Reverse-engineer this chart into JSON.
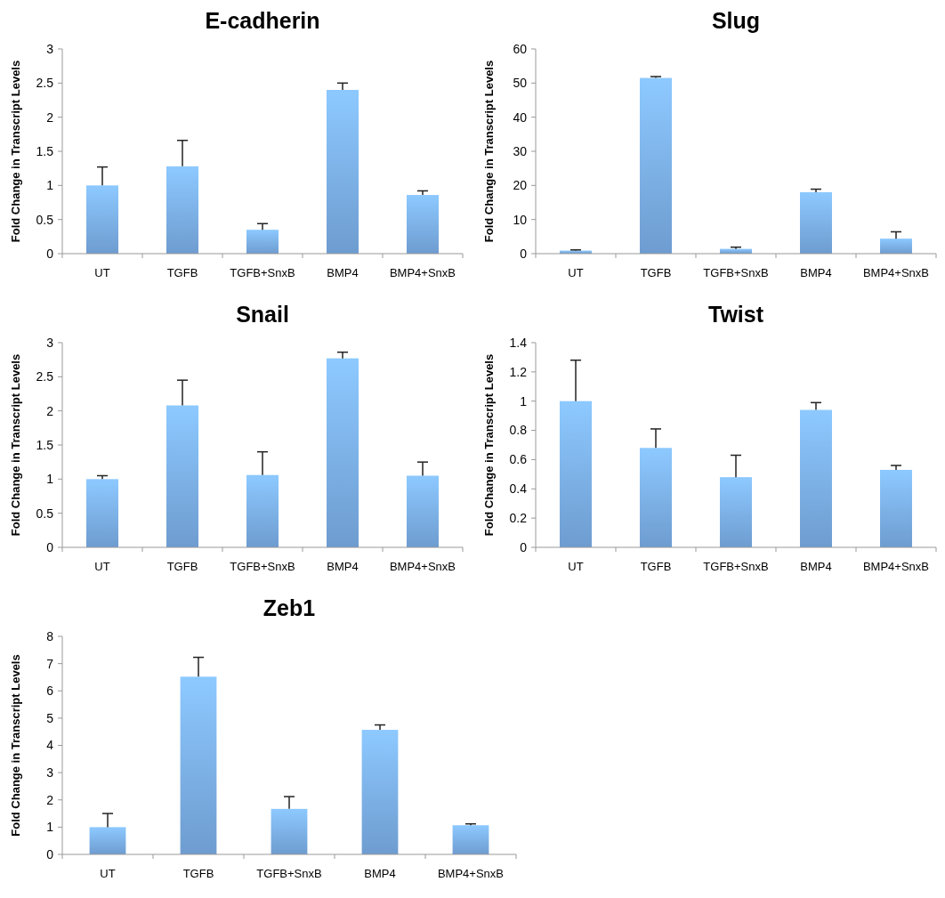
{
  "chart_data": [
    {
      "type": "bar",
      "title": "E-cadherin",
      "ylabel": "Fold Change in Transcript Levels",
      "categories": [
        "UT",
        "TGFB",
        "TGFB+SnxB",
        "BMP4",
        "BMP4+SnxB"
      ],
      "values": [
        1.0,
        1.28,
        0.35,
        2.4,
        0.86
      ],
      "errors": [
        [
          1.0,
          1.27
        ],
        [
          1.28,
          1.66
        ],
        [
          0.35,
          0.44
        ],
        [
          2.4,
          2.5
        ],
        [
          0.86,
          0.92
        ]
      ],
      "color": "#7aaee8",
      "ylim": [
        0,
        3
      ],
      "yticks": [
        0,
        0.5,
        1,
        1.5,
        2,
        2.5,
        3
      ],
      "grid": false
    },
    {
      "type": "bar",
      "title": "Slug",
      "ylabel": "Fold Change in Transcript Levels",
      "categories": [
        "UT",
        "TGFB",
        "TGFB+SnxB",
        "BMP4",
        "BMP4+SnxB"
      ],
      "values": [
        0.9,
        51.5,
        1.4,
        18,
        4.4
      ],
      "errors": [
        [
          0.9,
          1.1
        ],
        [
          51.5,
          51.9
        ],
        [
          1.4,
          1.9
        ],
        [
          18,
          18.9
        ],
        [
          4.4,
          6.4
        ]
      ],
      "color": "#7aaee8",
      "ylim": [
        0,
        60
      ],
      "yticks": [
        0,
        10,
        20,
        30,
        40,
        50,
        60
      ],
      "grid": false
    },
    {
      "type": "bar",
      "title": "Snail",
      "ylabel": "Fold Change in Transcript Levels",
      "categories": [
        "UT",
        "TGFB",
        "TGFB+SnxB",
        "BMP4",
        "BMP4+SnxB"
      ],
      "values": [
        1.0,
        2.08,
        1.06,
        2.77,
        1.05
      ],
      "errors": [
        [
          1.0,
          1.05
        ],
        [
          2.08,
          2.45
        ],
        [
          1.06,
          1.4
        ],
        [
          2.77,
          2.86
        ],
        [
          1.05,
          1.25
        ]
      ],
      "color": "#7aaee8",
      "ylim": [
        0,
        3
      ],
      "yticks": [
        0,
        0.5,
        1,
        1.5,
        2,
        2.5,
        3
      ],
      "grid": false
    },
    {
      "type": "bar",
      "title": "Twist",
      "ylabel": "Fold Change in Transcript Levels",
      "categories": [
        "UT",
        "TGFB",
        "TGFB+SnxB",
        "BMP4",
        "BMP4+SnxB"
      ],
      "values": [
        1.0,
        0.68,
        0.48,
        0.94,
        0.53
      ],
      "errors": [
        [
          1.0,
          1.28
        ],
        [
          0.68,
          0.81
        ],
        [
          0.48,
          0.63
        ],
        [
          0.94,
          0.99
        ],
        [
          0.53,
          0.56
        ]
      ],
      "color": "#7aaee8",
      "ylim": [
        0,
        1.4
      ],
      "yticks": [
        0,
        0.2,
        0.4,
        0.6,
        0.8,
        1,
        1.2,
        1.4
      ],
      "grid": false
    },
    {
      "type": "bar",
      "title": "Zeb1",
      "ylabel": "Fold Change in Transcript Levels",
      "categories": [
        "UT",
        "TGFB",
        "TGFB+SnxB",
        "BMP4",
        "BMP4+SnxB"
      ],
      "values": [
        1.0,
        6.52,
        1.67,
        4.57,
        1.07
      ],
      "errors": [
        [
          1.0,
          1.5
        ],
        [
          6.52,
          7.23
        ],
        [
          1.67,
          2.12
        ],
        [
          4.57,
          4.75
        ],
        [
          1.07,
          1.12
        ]
      ],
      "color": "#7aaee8",
      "ylim": [
        0,
        8
      ],
      "yticks": [
        0,
        1,
        2,
        3,
        4,
        5,
        6,
        7,
        8
      ],
      "grid": false
    }
  ]
}
